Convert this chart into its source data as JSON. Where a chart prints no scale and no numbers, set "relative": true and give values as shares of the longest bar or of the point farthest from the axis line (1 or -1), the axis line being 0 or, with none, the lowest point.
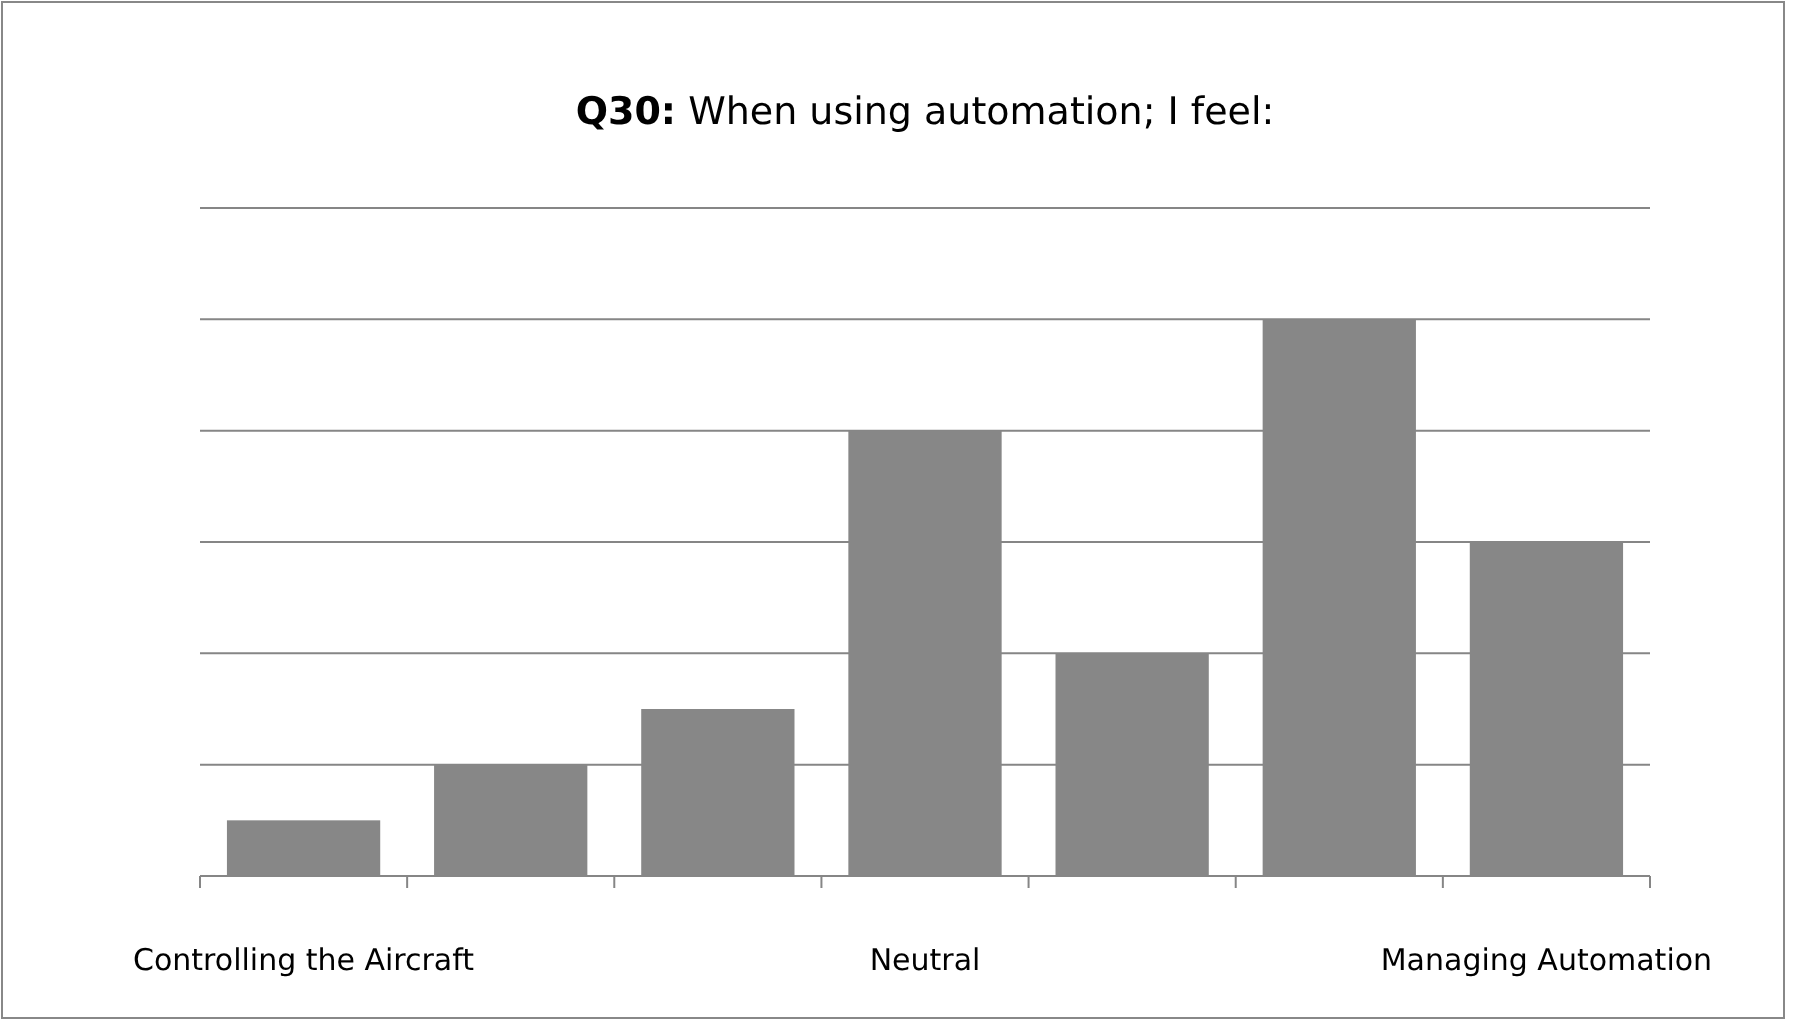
{
  "chart_data": {
    "type": "bar",
    "title": "Q30: When using automation; I feel:",
    "categories": [
      "Controlling the Aircraft",
      null,
      null,
      "Neutral",
      null,
      null,
      "Managing Automation"
    ],
    "values": [
      0.1,
      0.2,
      0.3,
      0.8,
      0.4,
      1,
      0.6
    ],
    "color": "#878787",
    "relative": true,
    "grid": "y"
  }
}
